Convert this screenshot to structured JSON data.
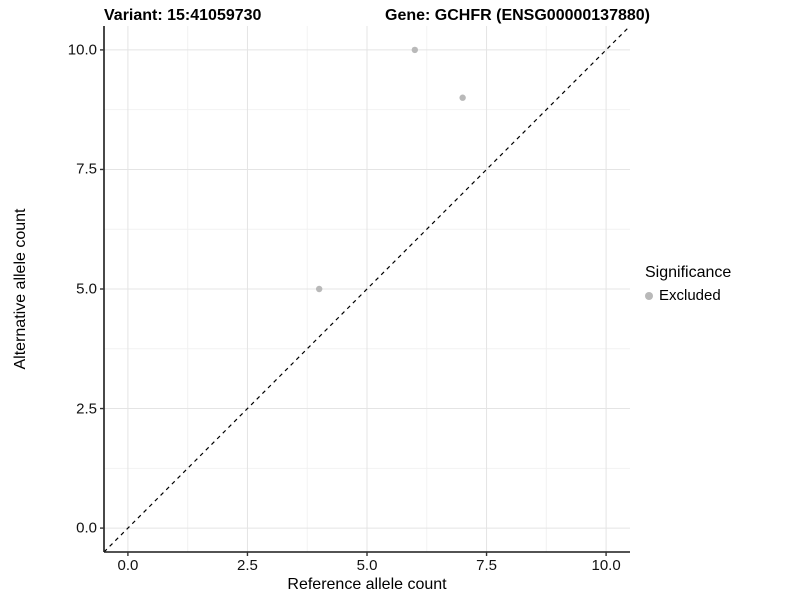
{
  "chart_data": {
    "type": "scatter",
    "title_left": "Variant: 15:41059730",
    "title_right": "Gene: GCHFR (ENSG00000137880)",
    "xlabel": "Reference allele count",
    "ylabel": "Alternative allele count",
    "xlim": [
      -0.5,
      10.5
    ],
    "ylim": [
      -0.5,
      10.5
    ],
    "x_ticks": [
      0.0,
      2.5,
      5.0,
      7.5,
      10.0
    ],
    "x_tick_labels": [
      "0.0",
      "2.5",
      "5.0",
      "7.5",
      "10.0"
    ],
    "y_ticks": [
      0.0,
      2.5,
      5.0,
      7.5,
      10.0
    ],
    "y_tick_labels": [
      "0.0",
      "2.5",
      "5.0",
      "7.5",
      "10.0"
    ],
    "x_minor_ticks": [
      1.25,
      3.75,
      6.25,
      8.75
    ],
    "y_minor_ticks": [
      1.25,
      3.75,
      6.25,
      8.75
    ],
    "grid": true,
    "series": [
      {
        "name": "Excluded",
        "color": "#b9b9b9",
        "points": [
          {
            "x": 6,
            "y": 10
          },
          {
            "x": 7,
            "y": 9
          },
          {
            "x": 4,
            "y": 5
          }
        ]
      }
    ],
    "reference_line": {
      "type": "identity",
      "style": "dashed",
      "from": [
        -0.5,
        -0.5
      ],
      "to": [
        10.5,
        10.5
      ]
    },
    "legend": {
      "position": "right",
      "title": "Significance",
      "entries": [
        {
          "label": "Excluded",
          "color": "#b9b9b9"
        }
      ]
    }
  },
  "colors": {
    "background": "#ffffff",
    "point": "#b9b9b9",
    "grid_major": "#e4e4e4",
    "grid_minor": "#f2f2f2",
    "axis_line": "#1a1a1a",
    "tick_mark": "#333333",
    "reference_line": "#000000",
    "text": "#000000"
  }
}
